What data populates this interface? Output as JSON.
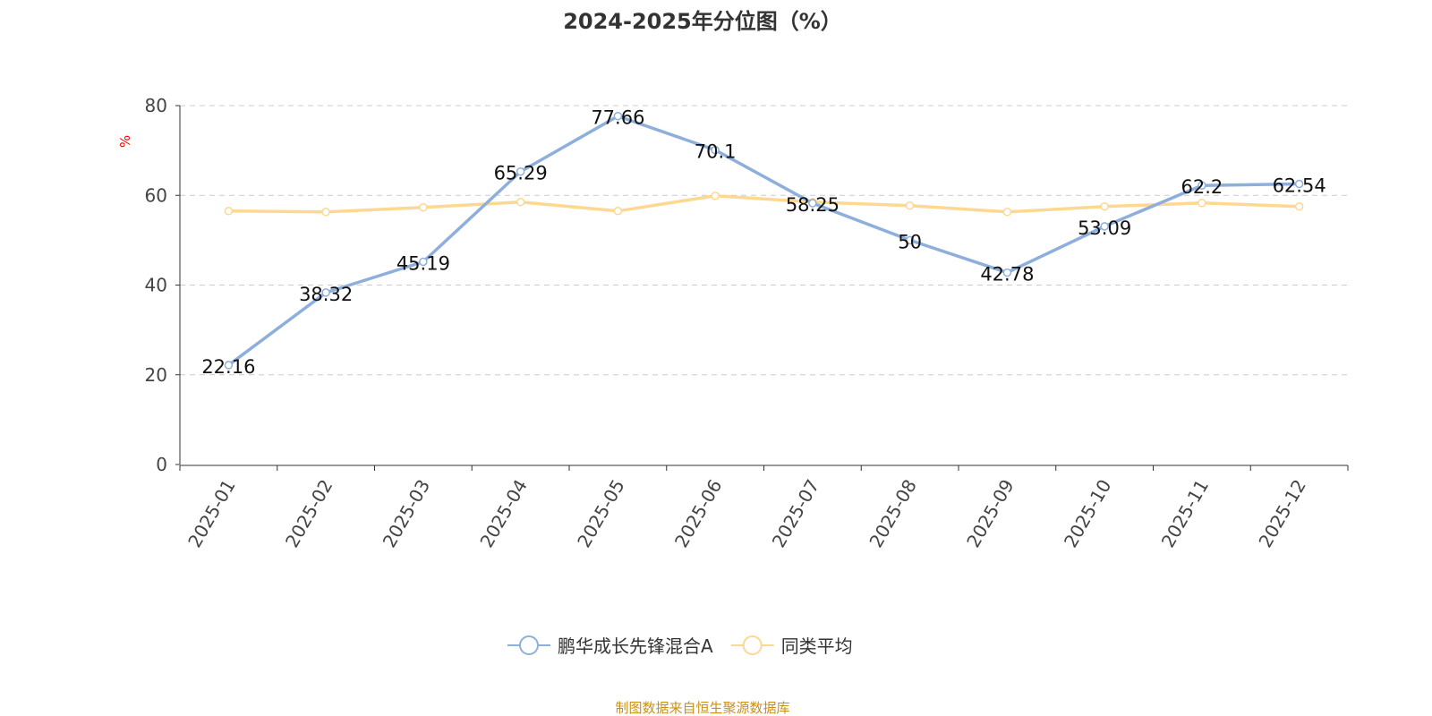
{
  "chart_data": {
    "type": "line",
    "title": "2024-2025年分位图（%）",
    "ylabel": "%",
    "ylim": [
      0,
      80
    ],
    "yticks": [
      0,
      20,
      40,
      60,
      80
    ],
    "categories": [
      "2025-01",
      "2025-02",
      "2025-03",
      "2025-04",
      "2025-05",
      "2025-06",
      "2025-07",
      "2025-08",
      "2025-09",
      "2025-10",
      "2025-11",
      "2025-12"
    ],
    "series": [
      {
        "name": "鹏华成长先锋混合A",
        "color": "#8eafdc",
        "values": [
          22.16,
          38.32,
          45.19,
          65.29,
          77.66,
          70.1,
          58.25,
          50,
          42.78,
          53.09,
          62.2,
          62.54
        ],
        "labels": true
      },
      {
        "name": "同类平均",
        "color": "#fdd891",
        "values": [
          56.5,
          56.3,
          57.3,
          58.5,
          56.5,
          59.9,
          58.5,
          57.7,
          56.3,
          57.5,
          58.3,
          57.5
        ],
        "labels": false
      }
    ],
    "legend": "bottom-center",
    "grid": true
  },
  "source": "制图数据来自恒生聚源数据库"
}
